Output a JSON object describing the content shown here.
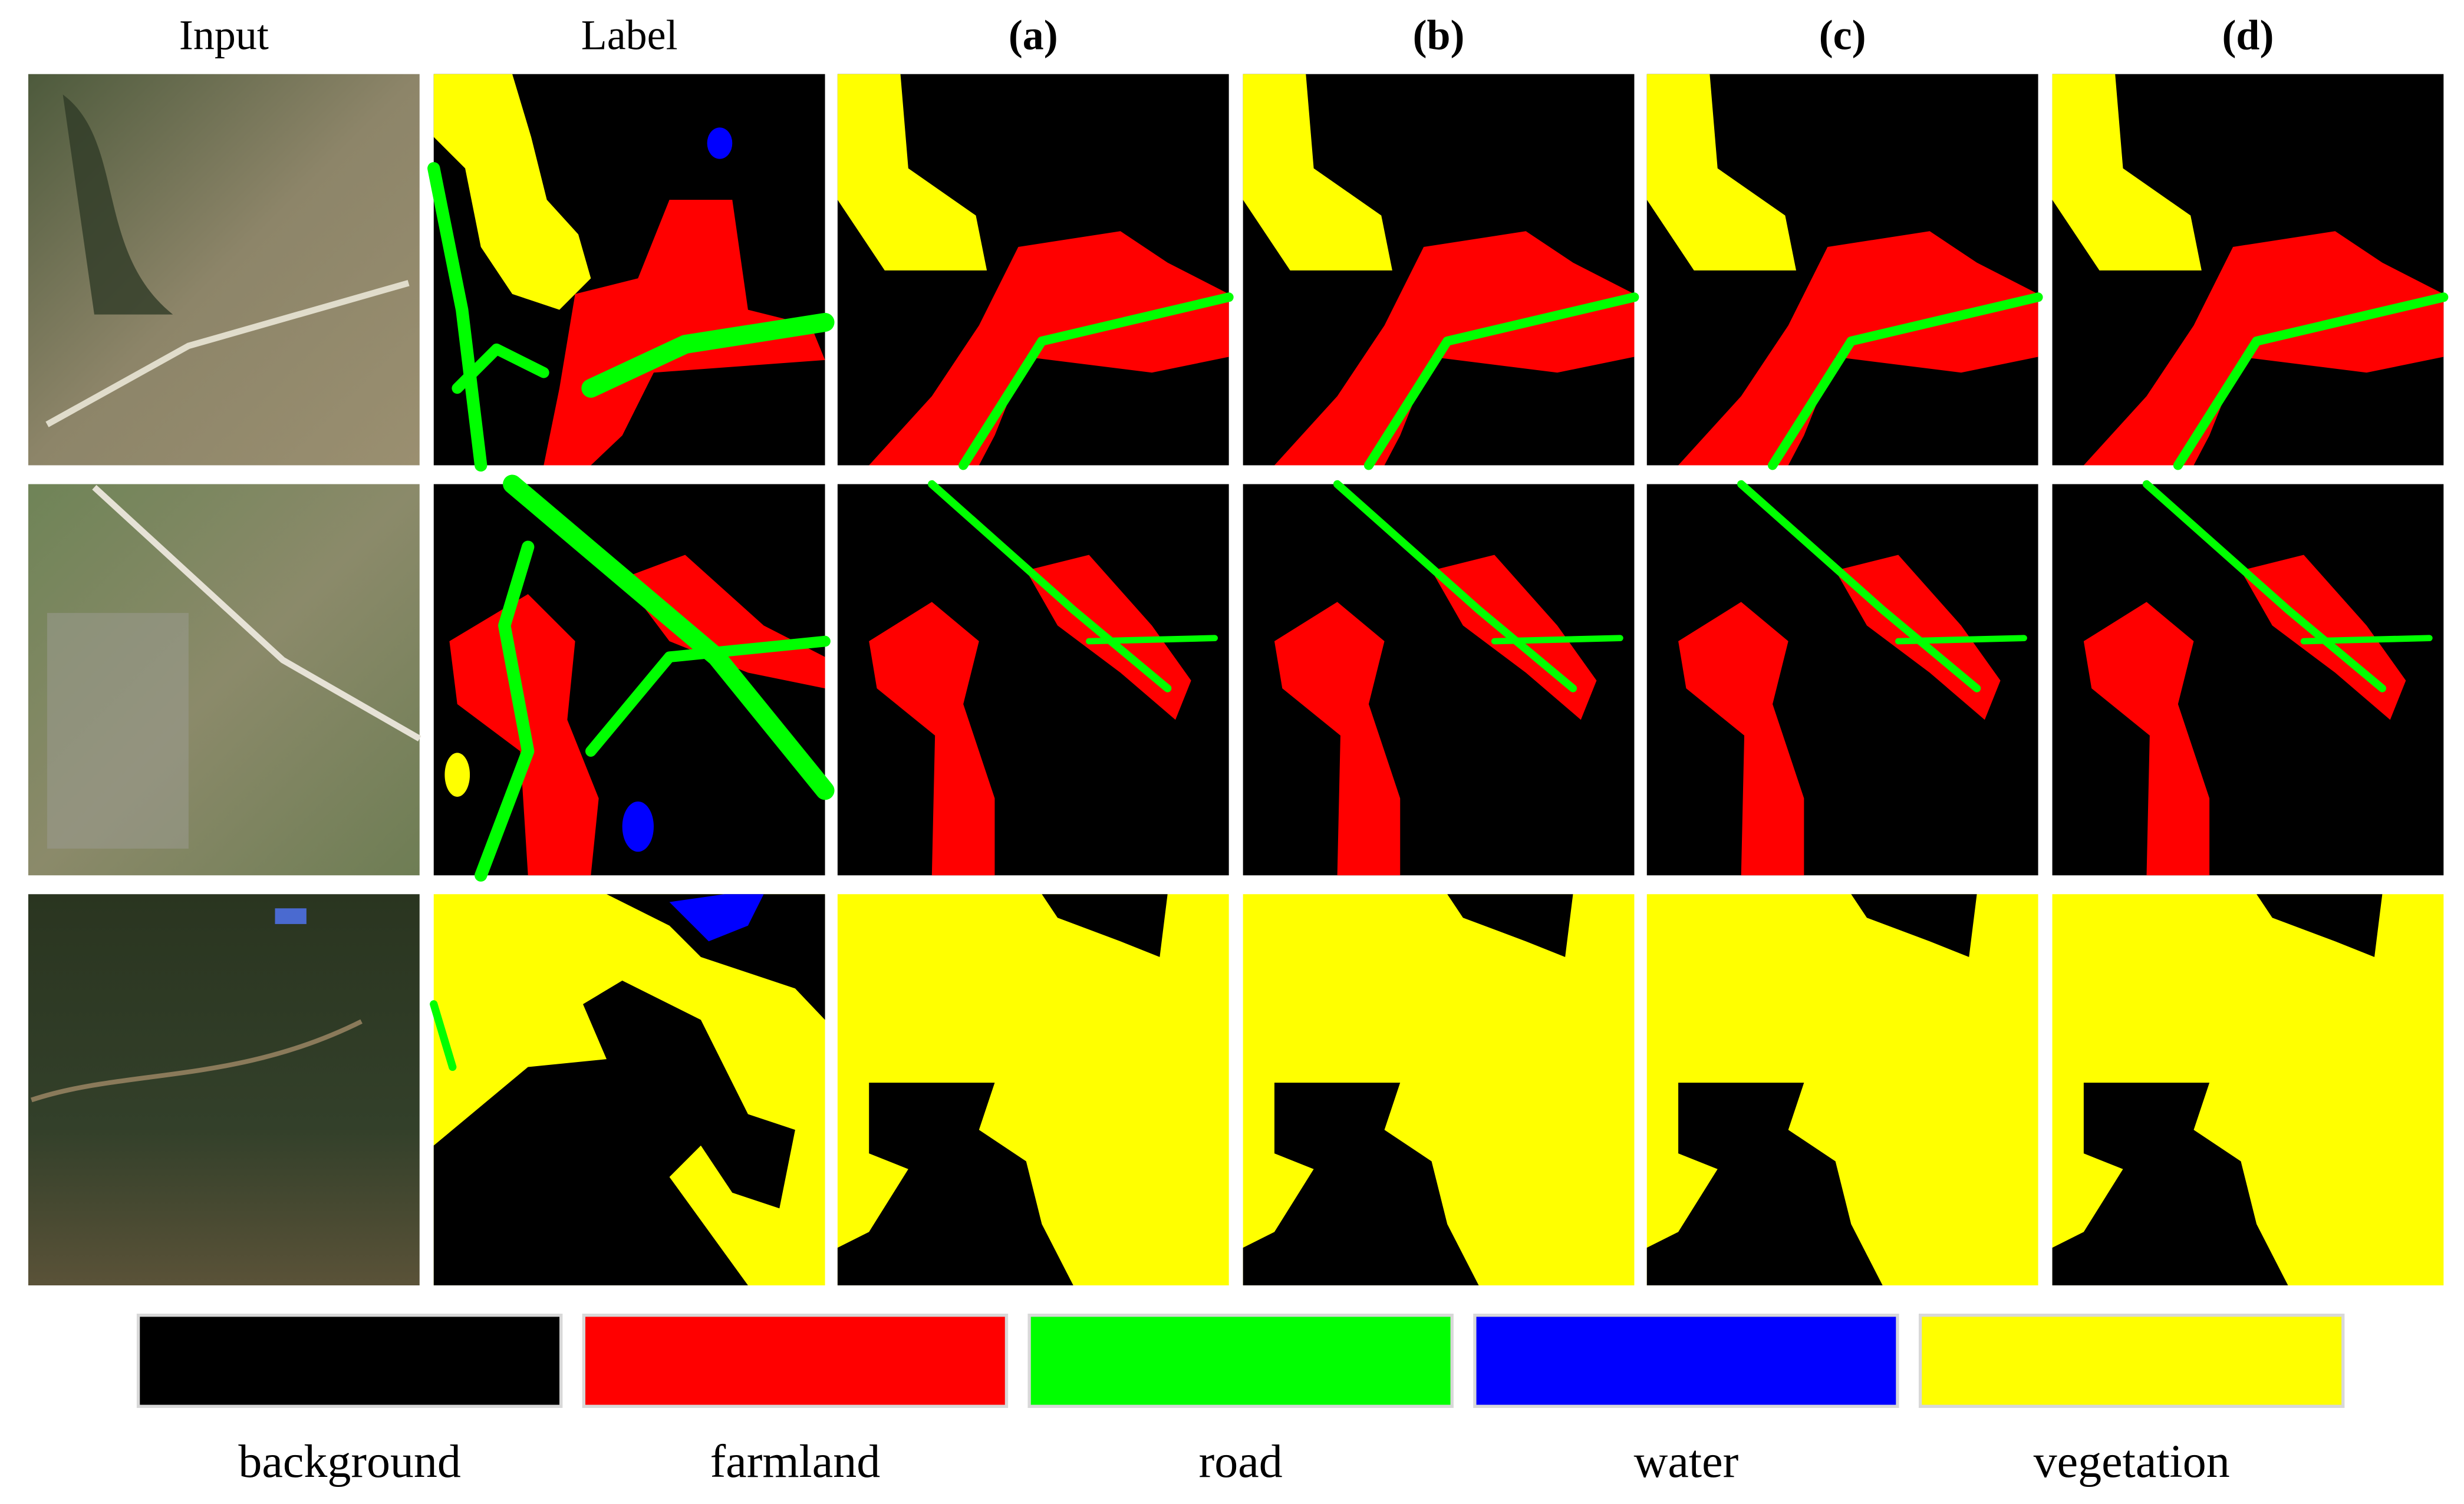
{
  "columns": [
    "Input",
    "Label",
    "(a)",
    "(b)",
    "(c)",
    "(d)"
  ],
  "legend": [
    {
      "label": "background",
      "color": "#000000"
    },
    {
      "label": "farmland",
      "color": "#ff0000"
    },
    {
      "label": "road",
      "color": "#00ff00"
    },
    {
      "label": "water",
      "color": "#0000ff"
    },
    {
      "label": "vegetation",
      "color": "#ffff00"
    }
  ]
}
